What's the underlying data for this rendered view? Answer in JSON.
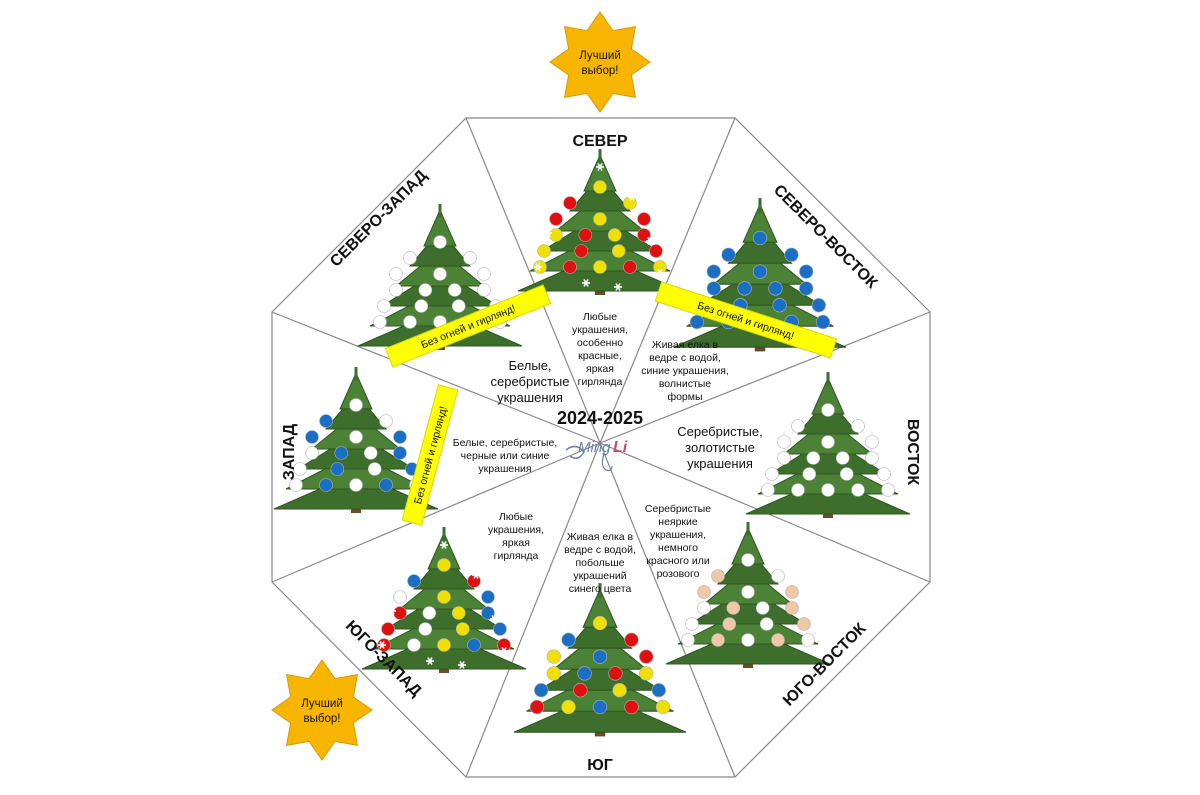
{
  "center": {
    "year": "2024-2025",
    "logo": "MingLi"
  },
  "star_badge": "Лучший выбор!",
  "ribbon": "Без огней и гирлянд!",
  "sectors": [
    {
      "id": "n",
      "direction": "СЕВЕР",
      "desc": [
        "Любые",
        "украшения,",
        "особенно",
        "красные,",
        "яркая",
        "гирлянда"
      ],
      "ornament_colors": [
        "#f0e000",
        "#e01010"
      ],
      "snowflakes": true
    },
    {
      "id": "ne",
      "direction": "СЕВЕРО-ВОСТОК",
      "desc": [
        "Живая елка в",
        "ведре с водой,",
        "синие украшения,",
        "волнистые",
        "формы"
      ],
      "ornament_colors": [
        "#1a6fc4"
      ],
      "snowflakes": false
    },
    {
      "id": "e",
      "direction": "ВОСТОК",
      "desc": [
        "Серебристые,",
        "золотистые",
        "украшения"
      ],
      "ornament_colors": [
        "#ffffff"
      ],
      "snowflakes": false
    },
    {
      "id": "se",
      "direction": "ЮГО-ВОСТОК",
      "desc": [
        "Серебристые",
        "неяркие",
        "украшения,",
        "немного",
        "красного или",
        "розового"
      ],
      "ornament_colors": [
        "#ffffff",
        "#f0c8a8"
      ],
      "snowflakes": false
    },
    {
      "id": "s",
      "direction": "ЮГ",
      "desc": [
        "Живая елка в",
        "ведре с водой,",
        "побольше",
        "украшений",
        "синего цвета"
      ],
      "ornament_colors": [
        "#f0e000",
        "#1a6fc4",
        "#e01010"
      ],
      "snowflakes": false
    },
    {
      "id": "sw",
      "direction": "ЮГО-ЗАПАД",
      "desc": [
        "Любые",
        "украшения,",
        "яркая",
        "гирлянда"
      ],
      "ornament_colors": [
        "#f0e000",
        "#1a6fc4",
        "#e01010",
        "#ffffff"
      ],
      "snowflakes": true
    },
    {
      "id": "w",
      "direction": "ЗАПАД",
      "desc": [
        "Белые, серебристые,",
        "черные или синие",
        "украшения"
      ],
      "ornament_colors": [
        "#ffffff",
        "#1a6fc4"
      ],
      "snowflakes": false
    },
    {
      "id": "nw",
      "direction": "СЕВЕРО-ЗАПАД",
      "desc": [
        "Белые,",
        "серебристые",
        "украшения"
      ],
      "ornament_colors": [
        "#ffffff"
      ],
      "snowflakes": false
    }
  ],
  "colors": {
    "line": "#888888",
    "ribbon": "#ffff00",
    "star": "#f7b500",
    "tree": "#3d6e2c"
  }
}
